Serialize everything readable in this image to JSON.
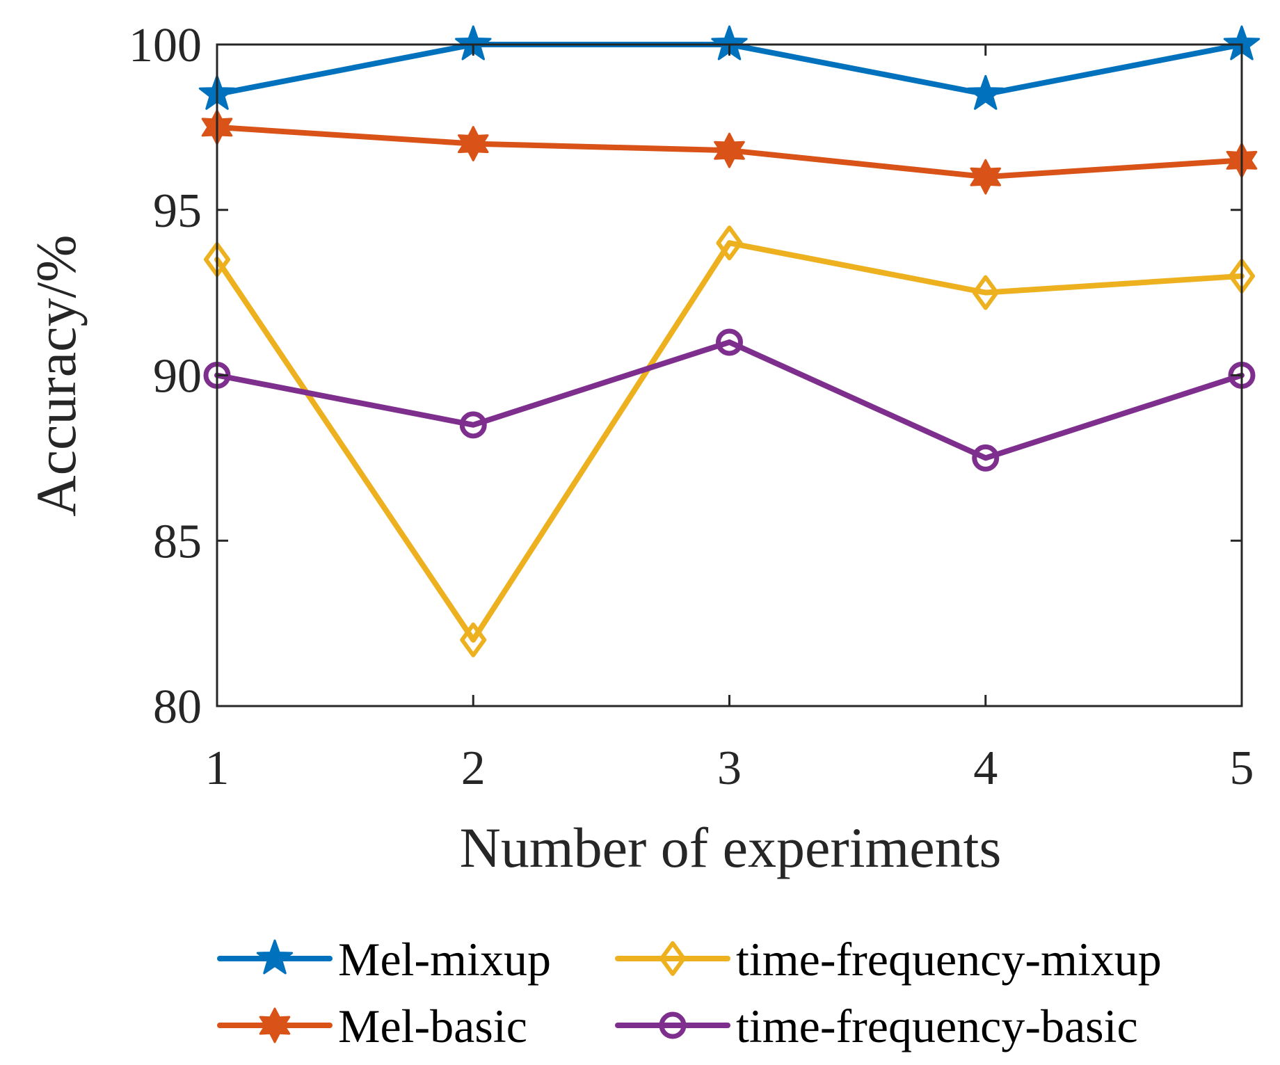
{
  "chart_data": {
    "type": "line",
    "title": "",
    "xlabel": "Number of experiments",
    "ylabel": "Accuracy/%",
    "x": [
      1,
      2,
      3,
      4,
      5
    ],
    "xticks": [
      "1",
      "2",
      "3",
      "4",
      "5"
    ],
    "yticks": [
      "80",
      "85",
      "90",
      "95",
      "100"
    ],
    "xlim": [
      1,
      5
    ],
    "ylim": [
      80,
      100
    ],
    "grid": false,
    "legend_position": "bottom",
    "series": [
      {
        "name": "Mel-mixup",
        "marker": "star-5",
        "color": "#0072BD",
        "values": [
          98.5,
          100,
          100,
          98.5,
          100
        ]
      },
      {
        "name": "Mel-basic",
        "marker": "star-6",
        "color": "#D95319",
        "values": [
          97.5,
          97.0,
          96.8,
          96.0,
          96.5
        ]
      },
      {
        "name": "time-frequency-mixup",
        "marker": "diamond",
        "color": "#EDB120",
        "values": [
          93.5,
          82.0,
          94.0,
          92.5,
          93.0
        ]
      },
      {
        "name": "time-frequency-basic",
        "marker": "circle",
        "color": "#7E2F8E",
        "values": [
          90.0,
          88.5,
          91.0,
          87.5,
          90.0
        ]
      }
    ]
  }
}
